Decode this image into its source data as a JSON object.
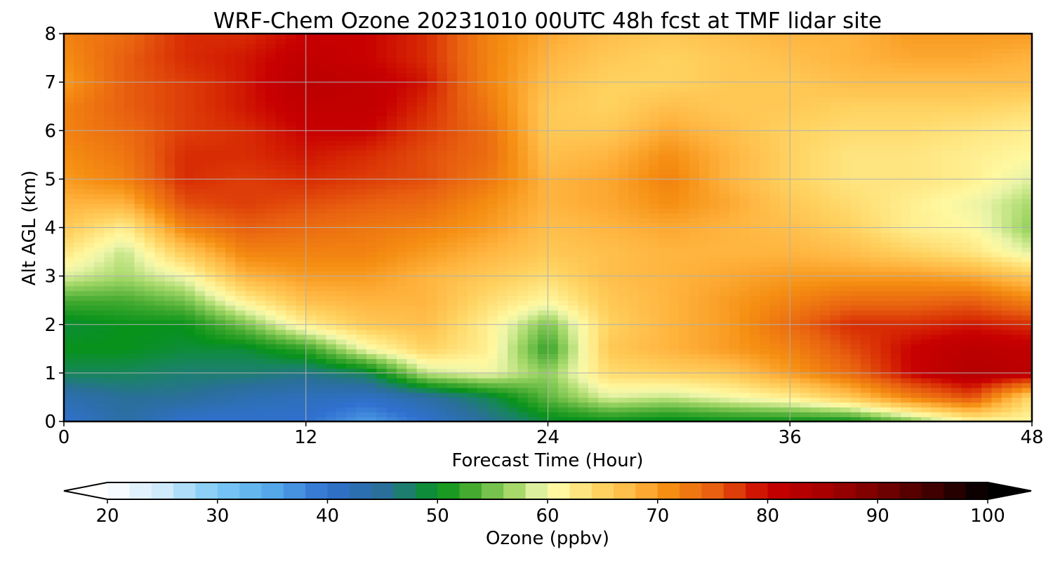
{
  "chart_data": {
    "type": "heatmap",
    "title": "WRF-Chem Ozone  20231010 00UTC 48h fcst at TMF lidar site",
    "xlabel": "Forecast Time (Hour)",
    "ylabel": "Alt AGL (km)",
    "xlim": [
      0,
      48
    ],
    "ylim": [
      0,
      8
    ],
    "xticks": [
      "0",
      "12",
      "24",
      "36",
      "48"
    ],
    "yticks": [
      "0",
      "1",
      "2",
      "3",
      "4",
      "5",
      "6",
      "7",
      "8"
    ],
    "grid": true,
    "x_hours": [
      0,
      3,
      6,
      9,
      12,
      15,
      18,
      21,
      24,
      27,
      30,
      33,
      36,
      39,
      42,
      45,
      48
    ],
    "y_km": [
      0,
      0.5,
      1,
      1.5,
      2,
      2.5,
      3,
      3.5,
      4,
      4.5,
      5,
      5.5,
      6,
      6.5,
      7,
      7.5,
      8
    ],
    "ozone_ppbv": [
      [
        40,
        44,
        40,
        40,
        40,
        36,
        40,
        45,
        49,
        50,
        49,
        50,
        50,
        50,
        55,
        61,
        61
      ],
      [
        43,
        45,
        45,
        43,
        42,
        41,
        44,
        48,
        54,
        59,
        58,
        60,
        62,
        66,
        72,
        76,
        64
      ],
      [
        48,
        48,
        47,
        47,
        46,
        48,
        58,
        60,
        56,
        64,
        65,
        66,
        70,
        74,
        80,
        83,
        82
      ],
      [
        50,
        50,
        49,
        49,
        52,
        60,
        65,
        62,
        52,
        66,
        68,
        70,
        72,
        76,
        80,
        82,
        81
      ],
      [
        49,
        50,
        50,
        55,
        62,
        66,
        67,
        62,
        55,
        65,
        68,
        70,
        74,
        78,
        78,
        79,
        78
      ],
      [
        53,
        53,
        55,
        62,
        67,
        68,
        68,
        64,
        61,
        66,
        68,
        70,
        72,
        74,
        74,
        75,
        72
      ],
      [
        59,
        57,
        60,
        68,
        70,
        70,
        68,
        66,
        64,
        67,
        68,
        69,
        70,
        70,
        70,
        69,
        66
      ],
      [
        63,
        58,
        66,
        72,
        72,
        72,
        70,
        68,
        66,
        67,
        68,
        68,
        68,
        67,
        65,
        63,
        59
      ],
      [
        66,
        62,
        72,
        75,
        74,
        73,
        72,
        70,
        67,
        68,
        69,
        68,
        67,
        65,
        62,
        61,
        56
      ],
      [
        68,
        68,
        76,
        77,
        76,
        75,
        74,
        71,
        68,
        69,
        71,
        69,
        66,
        64,
        62,
        60,
        57
      ],
      [
        70,
        72,
        78,
        77,
        78,
        77,
        76,
        73,
        68,
        69,
        72,
        68,
        65,
        63,
        63,
        62,
        59
      ],
      [
        71,
        73,
        78,
        78,
        79,
        78,
        76,
        74,
        67,
        68,
        71,
        68,
        65,
        63,
        63,
        62,
        61
      ],
      [
        72,
        74,
        77,
        78,
        80,
        80,
        77,
        74,
        66,
        66,
        69,
        67,
        65,
        64,
        64,
        63,
        62
      ],
      [
        72,
        75,
        77,
        79,
        81,
        81,
        78,
        73,
        66,
        65,
        67,
        66,
        66,
        65,
        65,
        65,
        64
      ],
      [
        70,
        75,
        77,
        79,
        82,
        81,
        79,
        72,
        67,
        65,
        65,
        66,
        66,
        67,
        67,
        67,
        67
      ],
      [
        71,
        75,
        78,
        79,
        81,
        80,
        78,
        72,
        68,
        66,
        65,
        66,
        67,
        68,
        69,
        69,
        68
      ],
      [
        72,
        74,
        78,
        78,
        80,
        80,
        78,
        72,
        69,
        67,
        66,
        67,
        68,
        68,
        70,
        70,
        70
      ]
    ],
    "colorbar": {
      "label": "Ozone  (ppbv)",
      "range": [
        20,
        100
      ],
      "ticks": [
        "20",
        "30",
        "40",
        "50",
        "60",
        "70",
        "80",
        "90",
        "100"
      ],
      "extend": "both",
      "stops": [
        {
          "v": 20,
          "c": "#ffffff"
        },
        {
          "v": 25,
          "c": "#cfeafb"
        },
        {
          "v": 30,
          "c": "#7ccaf6"
        },
        {
          "v": 35,
          "c": "#54a8ea"
        },
        {
          "v": 40,
          "c": "#3070d0"
        },
        {
          "v": 45,
          "c": "#2a6f9a"
        },
        {
          "v": 48,
          "c": "#16865a"
        },
        {
          "v": 50,
          "c": "#07921a"
        },
        {
          "v": 53,
          "c": "#44aa30"
        },
        {
          "v": 57,
          "c": "#a6d96a"
        },
        {
          "v": 59.5,
          "c": "#eaf4a8"
        },
        {
          "v": 61,
          "c": "#fff8a0"
        },
        {
          "v": 65,
          "c": "#ffd260"
        },
        {
          "v": 68,
          "c": "#ffb540"
        },
        {
          "v": 71,
          "c": "#f58e12"
        },
        {
          "v": 75,
          "c": "#e86010"
        },
        {
          "v": 78,
          "c": "#d82c04"
        },
        {
          "v": 80,
          "c": "#c80000"
        },
        {
          "v": 85,
          "c": "#a80000"
        },
        {
          "v": 90,
          "c": "#780000"
        },
        {
          "v": 95,
          "c": "#400000"
        },
        {
          "v": 100,
          "c": "#000000"
        }
      ]
    }
  }
}
